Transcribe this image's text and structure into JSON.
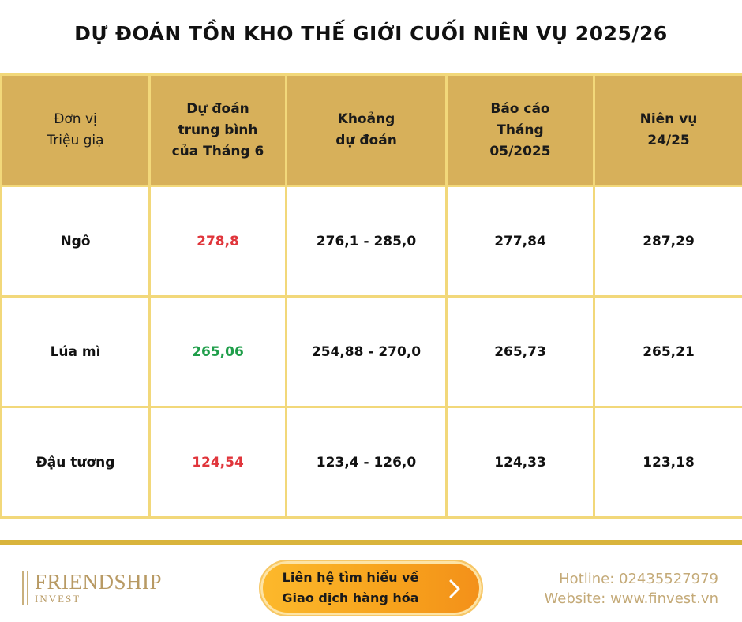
{
  "title": "DỰ ĐOÁN TỒN KHO THẾ GIỚI CUỐI NIÊN VỤ 2025/26",
  "table": {
    "headers": [
      "Đơn vị\nTriệu giạ",
      "Dự đoán\ntrung bình\ncủa Tháng 6",
      "Khoảng\ndự đoán",
      "Báo cáo\nTháng\n05/2025",
      "Niên vụ\n24/25"
    ],
    "rows": [
      {
        "commodity": "Ngô",
        "average": "278,8",
        "range": "276,1 - 285,0",
        "may_report": "277,84",
        "season_2425": "287,29",
        "average_color": "#e0353b"
      },
      {
        "commodity": "Lúa mì",
        "average": "265,06",
        "range": "254,88 - 270,0",
        "may_report": "265,73",
        "season_2425": "265,21",
        "average_color": "#1f9e4a"
      },
      {
        "commodity": "Đậu tương",
        "average": "124,54",
        "range": "123,4 - 126,0",
        "may_report": "124,33",
        "season_2425": "123,18",
        "average_color": "#e0353b"
      }
    ]
  },
  "footer": {
    "logo_name": "FRIENDSHIP",
    "logo_sub": "INVEST",
    "cta_label": "Liên hệ tìm hiểu về\nGiao dịch hàng hóa",
    "cta_icon": "chevron-right-icon",
    "hotline": "Hotline: 02435527979",
    "website": "Website: www.finvest.vn"
  },
  "colors": {
    "header_bg": "#d7b05a",
    "grid_line": "#f2d87a",
    "accent_gold": "#d9b43c",
    "cta_orange": "#f7a21c"
  }
}
